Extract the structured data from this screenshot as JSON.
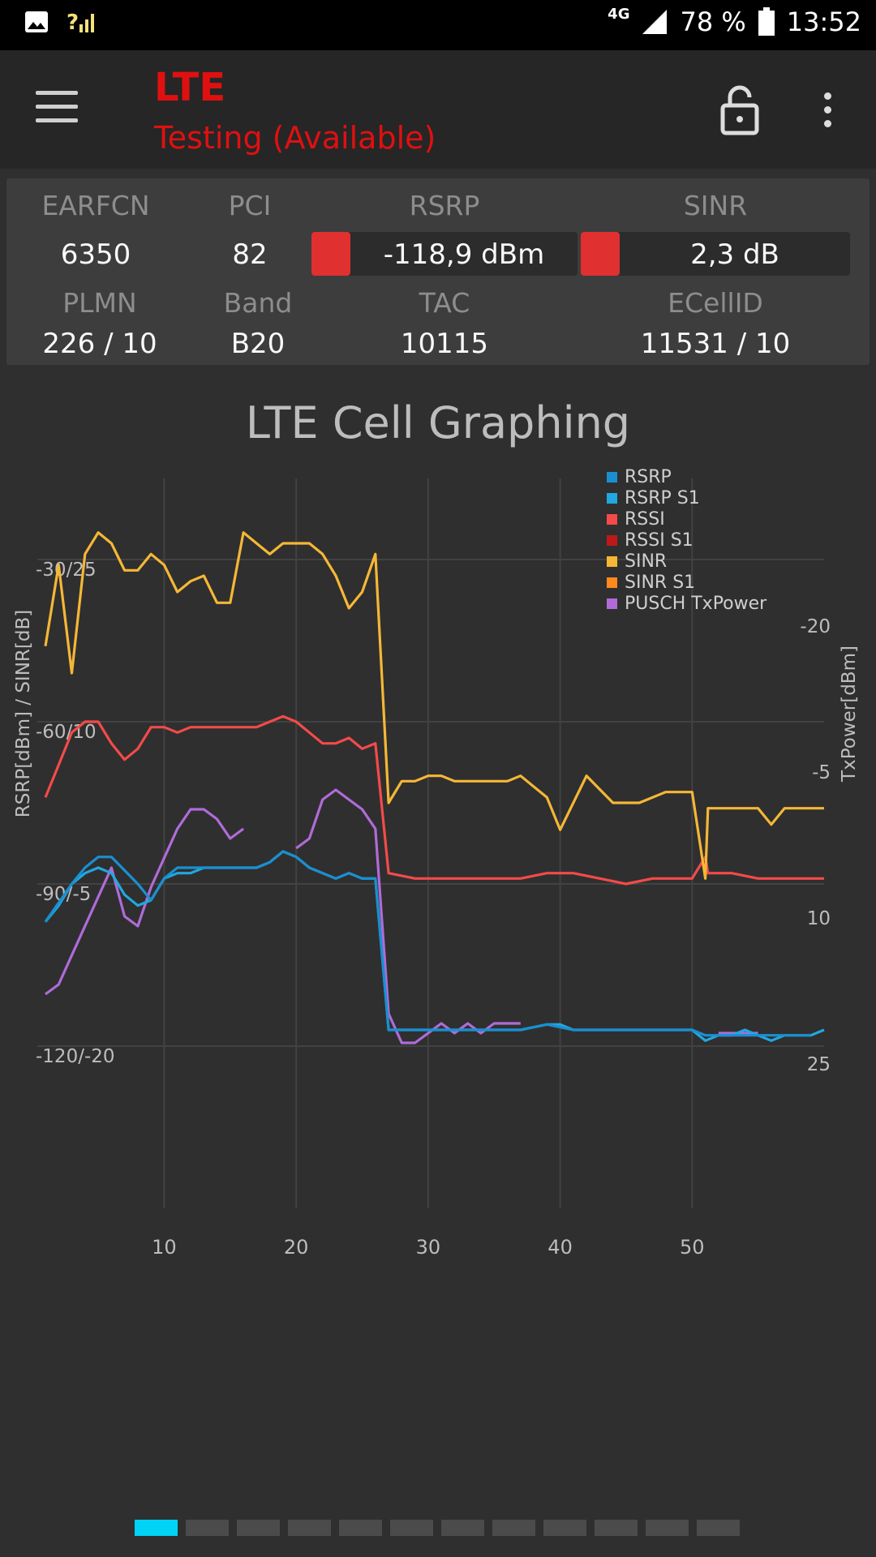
{
  "statusbar": {
    "network_type": "4G",
    "battery": "78 %",
    "time": "13:52"
  },
  "appbar": {
    "title": "LTE",
    "subtitle": "Testing (Available)"
  },
  "panel": {
    "earfcn": {
      "label": "EARFCN",
      "value": "6350"
    },
    "pci": {
      "label": "PCI",
      "value": "82"
    },
    "rsrp": {
      "label": "RSRP",
      "value": "-118,9 dBm",
      "color": "#e03030"
    },
    "sinr": {
      "label": "SINR",
      "value": "2,3 dB",
      "color": "#e03030"
    },
    "plmn": {
      "label": "PLMN",
      "value": "226 / 10"
    },
    "band": {
      "label": "Band",
      "value": "B20"
    },
    "tac": {
      "label": "TAC",
      "value": "10115"
    },
    "ecellid": {
      "label": "ECellID",
      "value": "11531 / 10"
    }
  },
  "chart_data": {
    "type": "line",
    "title": "LTE Cell Graphing",
    "ylabel": "RSRP[dBm] / SINR[dB]",
    "y2label": "TxPower[dBm]",
    "x_ticks": [
      "10",
      "20",
      "30",
      "40",
      "50"
    ],
    "y_ticks": [
      "-30/25",
      "-60/10",
      "-90/-5",
      "-120/-20"
    ],
    "y2_ticks": [
      "-20",
      "-5",
      "10",
      "25"
    ],
    "xlim": [
      1,
      60
    ],
    "ylim": [
      -150,
      -15
    ],
    "y2lim": [
      -35,
      40
    ],
    "grid": true,
    "legend_position": "top-right",
    "series": [
      {
        "name": "RSRP",
        "color": "#1a8fd0",
        "axis": "left",
        "points": [
          [
            1,
            -97
          ],
          [
            3,
            -90
          ],
          [
            4,
            -87
          ],
          [
            5,
            -85
          ],
          [
            6,
            -85
          ],
          [
            8,
            -90
          ],
          [
            9,
            -93
          ],
          [
            10,
            -89
          ],
          [
            11,
            -87
          ],
          [
            12,
            -87
          ],
          [
            13,
            -87
          ],
          [
            15,
            -87
          ],
          [
            17,
            -87
          ],
          [
            18,
            -86
          ],
          [
            19,
            -84
          ],
          [
            20,
            -85
          ],
          [
            21,
            -87
          ],
          [
            22,
            -88
          ],
          [
            23,
            -89
          ],
          [
            24,
            -88
          ],
          [
            25,
            -89
          ],
          [
            26,
            -89
          ],
          [
            27,
            -117
          ],
          [
            29,
            -117
          ],
          [
            31,
            -117
          ],
          [
            33,
            -117
          ],
          [
            35,
            -117
          ],
          [
            37,
            -117
          ],
          [
            39,
            -116
          ],
          [
            41,
            -117
          ],
          [
            43,
            -117
          ],
          [
            45,
            -117
          ],
          [
            47,
            -117
          ],
          [
            49,
            -117
          ],
          [
            50,
            -117
          ],
          [
            51,
            -118
          ],
          [
            53,
            -118
          ],
          [
            55,
            -118
          ],
          [
            57,
            -118
          ],
          [
            59,
            -118
          ]
        ]
      },
      {
        "name": "RSRP S1",
        "color": "#21a8e0",
        "axis": "left",
        "points": [
          [
            1,
            -97
          ],
          [
            2,
            -94
          ],
          [
            3,
            -90
          ],
          [
            4,
            -88
          ],
          [
            5,
            -87
          ],
          [
            6,
            -88
          ],
          [
            7,
            -92
          ],
          [
            8,
            -94
          ],
          [
            9,
            -93
          ],
          [
            10,
            -89
          ],
          [
            11,
            -88
          ],
          [
            12,
            -88
          ],
          [
            13,
            -87
          ],
          [
            15,
            -87
          ],
          [
            17,
            -87
          ],
          [
            18,
            -86
          ],
          [
            19,
            -84
          ],
          [
            20,
            -85
          ],
          [
            21,
            -87
          ],
          [
            22,
            -88
          ],
          [
            23,
            -89
          ],
          [
            24,
            -88
          ],
          [
            25,
            -89
          ],
          [
            26,
            -89
          ],
          [
            27,
            -117
          ],
          [
            29,
            -117
          ],
          [
            31,
            -117
          ],
          [
            33,
            -117
          ],
          [
            35,
            -117
          ],
          [
            37,
            -117
          ],
          [
            39,
            -116
          ],
          [
            40,
            -116
          ],
          [
            41,
            -117
          ],
          [
            43,
            -117
          ],
          [
            45,
            -117
          ],
          [
            47,
            -117
          ],
          [
            49,
            -117
          ],
          [
            50,
            -117
          ],
          [
            51,
            -119
          ],
          [
            52,
            -118
          ],
          [
            53,
            -118
          ],
          [
            54,
            -117
          ],
          [
            55,
            -118
          ],
          [
            56,
            -119
          ],
          [
            57,
            -118
          ],
          [
            58,
            -118
          ],
          [
            59,
            -118
          ],
          [
            60,
            -117
          ]
        ]
      },
      {
        "name": "RSSI",
        "color": "#f44a4a",
        "axis": "left",
        "points": [
          [
            1,
            -74
          ],
          [
            2,
            -68
          ],
          [
            3,
            -62
          ],
          [
            4,
            -60
          ],
          [
            5,
            -60
          ],
          [
            6,
            -64
          ],
          [
            7,
            -67
          ],
          [
            8,
            -65
          ],
          [
            9,
            -61
          ],
          [
            10,
            -61
          ],
          [
            11,
            -62
          ],
          [
            12,
            -61
          ],
          [
            14,
            -61
          ],
          [
            16,
            -61
          ],
          [
            17,
            -61
          ],
          [
            18,
            -60
          ],
          [
            19,
            -59
          ],
          [
            20,
            -60
          ],
          [
            21,
            -62
          ],
          [
            22,
            -64
          ],
          [
            23,
            -64
          ],
          [
            24,
            -63
          ],
          [
            25,
            -65
          ],
          [
            26,
            -64
          ],
          [
            27,
            -88
          ],
          [
            29,
            -89
          ],
          [
            31,
            -89
          ],
          [
            33,
            -89
          ],
          [
            35,
            -89
          ],
          [
            37,
            -89
          ],
          [
            39,
            -88
          ],
          [
            41,
            -88
          ],
          [
            43,
            -89
          ],
          [
            45,
            -90
          ],
          [
            47,
            -89
          ],
          [
            49,
            -89
          ],
          [
            50,
            -89
          ],
          [
            51,
            -85
          ],
          [
            51.2,
            -88
          ],
          [
            53,
            -88
          ],
          [
            55,
            -89
          ],
          [
            57,
            -89
          ],
          [
            59,
            -89
          ],
          [
            60,
            -89
          ]
        ]
      },
      {
        "name": "RSSI S1",
        "color": "#c01818",
        "axis": "left",
        "points": []
      },
      {
        "name": "SINR",
        "color": "#f5b736",
        "axis": "left",
        "points": [
          [
            1,
            -46
          ],
          [
            2,
            -31
          ],
          [
            3,
            -51
          ],
          [
            4,
            -29
          ],
          [
            5,
            -25
          ],
          [
            6,
            -27
          ],
          [
            7,
            -32
          ],
          [
            8,
            -32
          ],
          [
            9,
            -29
          ],
          [
            10,
            -31
          ],
          [
            11,
            -36
          ],
          [
            12,
            -34
          ],
          [
            13,
            -33
          ],
          [
            14,
            -38
          ],
          [
            15,
            -38
          ],
          [
            16,
            -25
          ],
          [
            17,
            -27
          ],
          [
            18,
            -29
          ],
          [
            19,
            -27
          ],
          [
            20,
            -27
          ],
          [
            21,
            -27
          ],
          [
            22,
            -29
          ],
          [
            23,
            -33
          ],
          [
            24,
            -39
          ],
          [
            25,
            -36
          ],
          [
            26,
            -29
          ],
          [
            27,
            -75
          ],
          [
            28,
            -71
          ],
          [
            29,
            -71
          ],
          [
            30,
            -70
          ],
          [
            31,
            -70
          ],
          [
            32,
            -71
          ],
          [
            33,
            -71
          ],
          [
            34,
            -71
          ],
          [
            35,
            -71
          ],
          [
            36,
            -71
          ],
          [
            37,
            -70
          ],
          [
            38,
            -72
          ],
          [
            39,
            -74
          ],
          [
            40,
            -80
          ],
          [
            42,
            -70
          ],
          [
            44,
            -75
          ],
          [
            46,
            -75
          ],
          [
            48,
            -73
          ],
          [
            50,
            -73
          ],
          [
            51,
            -89
          ],
          [
            51.2,
            -76
          ],
          [
            53,
            -76
          ],
          [
            55,
            -76
          ],
          [
            56,
            -79
          ],
          [
            57,
            -76
          ],
          [
            59,
            -76
          ],
          [
            60,
            -76
          ]
        ]
      },
      {
        "name": "SINR S1",
        "color": "#ff8a1c",
        "axis": "left",
        "points": []
      },
      {
        "name": "PUSCH TxPower",
        "color": "#b06bd8",
        "axis": "right",
        "points": [
          [
            1,
            18
          ],
          [
            2,
            17
          ],
          [
            3,
            14
          ],
          [
            4,
            11
          ],
          [
            5,
            8
          ],
          [
            6,
            5
          ],
          [
            7,
            10
          ],
          [
            8,
            11
          ],
          [
            9,
            7
          ],
          [
            10,
            4
          ],
          [
            11,
            1
          ],
          [
            12,
            -1
          ],
          [
            13,
            -1
          ],
          [
            14,
            0
          ],
          [
            15,
            2
          ],
          [
            16,
            1
          ],
          [
            17,
            null
          ],
          [
            20,
            3
          ],
          [
            21,
            2
          ],
          [
            22,
            -2
          ],
          [
            23,
            -3
          ],
          [
            24,
            -2
          ],
          [
            25,
            -1
          ],
          [
            26,
            1
          ],
          [
            27,
            20
          ],
          [
            28,
            23
          ],
          [
            29,
            23
          ],
          [
            30,
            22
          ],
          [
            31,
            21
          ],
          [
            32,
            22
          ],
          [
            33,
            21
          ],
          [
            34,
            22
          ],
          [
            35,
            21
          ],
          [
            36,
            21
          ],
          [
            37,
            21
          ],
          [
            38,
            null
          ],
          [
            52,
            22
          ],
          [
            55,
            22
          ]
        ]
      }
    ]
  },
  "pager": {
    "count": 12,
    "active": 0
  }
}
